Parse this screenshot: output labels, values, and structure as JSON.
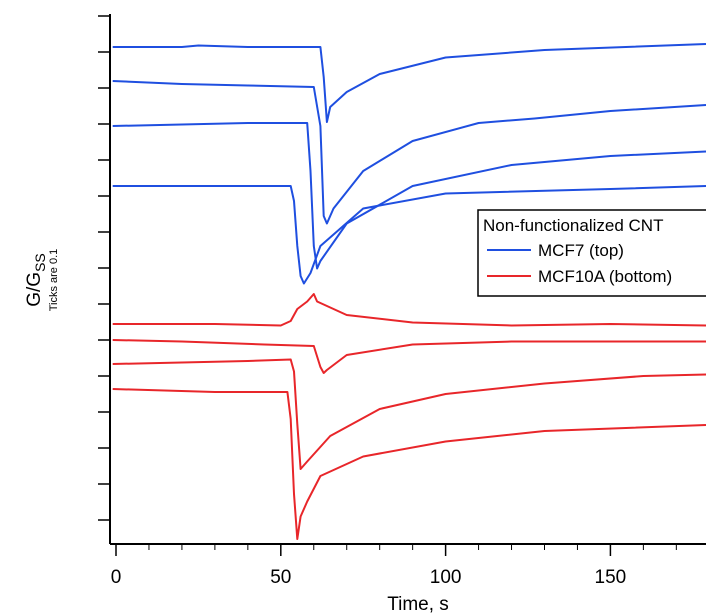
{
  "chart_data": {
    "type": "line",
    "title": "",
    "xlabel": "Time, s",
    "ylabel_main": "G/G",
    "ylabel_sub": "SS",
    "ylabel_note": "Ticks are 0.1",
    "xlim": [
      -1,
      179
    ],
    "x_ticks": [
      0,
      50,
      100,
      150
    ],
    "y_minor_tick_step": 0.1,
    "grid": false,
    "legend_position": "right",
    "legend": {
      "title": "Non-functionalized CNT",
      "entries": [
        {
          "label": "MCF7 (top)",
          "color": "#1f4fe0"
        },
        {
          "label": "MCF10A (bottom)",
          "color": "#e8262a"
        }
      ]
    },
    "series": [
      {
        "group": "MCF7 (top)",
        "color": "#1f4fe0",
        "points": [
          [
            -1,
            1.0
          ],
          [
            20,
            1.0
          ],
          [
            25,
            1.01
          ],
          [
            40,
            1.0
          ],
          [
            62,
            1.0
          ],
          [
            63,
            0.8
          ],
          [
            64,
            0.5
          ],
          [
            65,
            0.6
          ],
          [
            70,
            0.7
          ],
          [
            80,
            0.82
          ],
          [
            100,
            0.93
          ],
          [
            130,
            0.98
          ],
          [
            179,
            1.02
          ]
        ]
      },
      {
        "group": "MCF7 (top)",
        "color": "#1f4fe0",
        "points": [
          [
            -1,
            1.0
          ],
          [
            20,
            0.98
          ],
          [
            40,
            0.97
          ],
          [
            60,
            0.96
          ],
          [
            62,
            0.7
          ],
          [
            63,
            0.1
          ],
          [
            64,
            0.05
          ],
          [
            66,
            0.15
          ],
          [
            75,
            0.4
          ],
          [
            90,
            0.6
          ],
          [
            110,
            0.72
          ],
          [
            127,
            0.75
          ],
          [
            150,
            0.8
          ],
          [
            179,
            0.84
          ]
        ]
      },
      {
        "group": "MCF7 (top)",
        "color": "#1f4fe0",
        "points": [
          [
            -1,
            1.0
          ],
          [
            20,
            1.01
          ],
          [
            40,
            1.02
          ],
          [
            58,
            1.02
          ],
          [
            59,
            0.7
          ],
          [
            60,
            0.2
          ],
          [
            61,
            0.05
          ],
          [
            62,
            0.1
          ],
          [
            70,
            0.35
          ],
          [
            90,
            0.6
          ],
          [
            120,
            0.74
          ],
          [
            150,
            0.8
          ],
          [
            179,
            0.83
          ]
        ]
      },
      {
        "group": "MCF7 (top)",
        "color": "#1f4fe0",
        "points": [
          [
            -1,
            1.0
          ],
          [
            30,
            1.0
          ],
          [
            53,
            1.0
          ],
          [
            54,
            0.9
          ],
          [
            55,
            0.6
          ],
          [
            56,
            0.4
          ],
          [
            57,
            0.35
          ],
          [
            59,
            0.42
          ],
          [
            62,
            0.6
          ],
          [
            75,
            0.85
          ],
          [
            100,
            0.95
          ],
          [
            150,
            0.98
          ],
          [
            179,
            1.0
          ]
        ]
      },
      {
        "group": "MCF10A (bottom)",
        "color": "#e8262a",
        "points": [
          [
            -1,
            1.0
          ],
          [
            30,
            1.0
          ],
          [
            50,
            0.99
          ],
          [
            53,
            1.02
          ],
          [
            55,
            1.1
          ],
          [
            58,
            1.15
          ],
          [
            60,
            1.2
          ],
          [
            61,
            1.15
          ],
          [
            70,
            1.06
          ],
          [
            90,
            1.01
          ],
          [
            120,
            0.99
          ],
          [
            150,
            1.0
          ],
          [
            179,
            0.99
          ]
        ]
      },
      {
        "group": "MCF10A (bottom)",
        "color": "#e8262a",
        "points": [
          [
            -1,
            1.0
          ],
          [
            20,
            0.99
          ],
          [
            45,
            0.97
          ],
          [
            60,
            0.96
          ],
          [
            62,
            0.82
          ],
          [
            63,
            0.78
          ],
          [
            64,
            0.8
          ],
          [
            70,
            0.9
          ],
          [
            90,
            0.97
          ],
          [
            120,
            0.99
          ],
          [
            150,
            0.99
          ],
          [
            179,
            0.99
          ]
        ]
      },
      {
        "group": "MCF10A (bottom)",
        "color": "#e8262a",
        "points": [
          [
            -1,
            1.0
          ],
          [
            20,
            1.01
          ],
          [
            40,
            1.02
          ],
          [
            53,
            1.03
          ],
          [
            54,
            0.95
          ],
          [
            55,
            0.6
          ],
          [
            56,
            0.3
          ],
          [
            58,
            0.35
          ],
          [
            65,
            0.52
          ],
          [
            80,
            0.7
          ],
          [
            100,
            0.8
          ],
          [
            130,
            0.87
          ],
          [
            160,
            0.92
          ],
          [
            179,
            0.93
          ]
        ]
      },
      {
        "group": "MCF10A (bottom)",
        "color": "#e8262a",
        "points": [
          [
            -1,
            1.0
          ],
          [
            30,
            0.98
          ],
          [
            52,
            0.98
          ],
          [
            53,
            0.8
          ],
          [
            54,
            0.3
          ],
          [
            55,
            0.0
          ],
          [
            56,
            0.15
          ],
          [
            58,
            0.25
          ],
          [
            62,
            0.42
          ],
          [
            75,
            0.55
          ],
          [
            100,
            0.65
          ],
          [
            130,
            0.72
          ],
          [
            179,
            0.76
          ]
        ]
      }
    ],
    "y_display_offsets": [
      1.98,
      1.58,
      1.48,
      0.97,
      0.4,
      0.23,
      0.1,
      -0.1
    ]
  }
}
